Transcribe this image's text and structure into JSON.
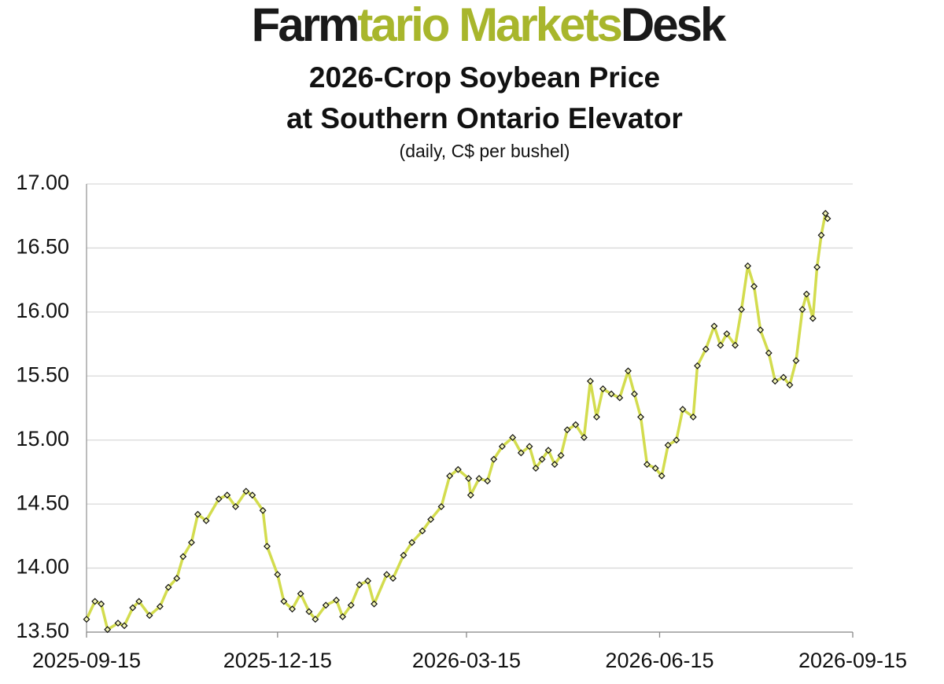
{
  "brand": [
    "Farm",
    "tario Markets",
    "Desk"
  ],
  "chart_data": {
    "type": "line",
    "title": [
      "2026-Crop Soybean Price",
      "at Southern Ontario Elevator"
    ],
    "subtitle": "(daily, C$ per bushel)",
    "x": [
      "2025-09-15",
      "2025-09-19",
      "2025-09-22",
      "2025-09-25",
      "2025-09-30",
      "2025-10-03",
      "2025-10-07",
      "2025-10-10",
      "2025-10-15",
      "2025-10-20",
      "2025-10-24",
      "2025-10-28",
      "2025-10-31",
      "2025-11-04",
      "2025-11-07",
      "2025-11-11",
      "2025-11-17",
      "2025-11-21",
      "2025-11-25",
      "2025-11-30",
      "2025-12-03",
      "2025-12-08",
      "2025-12-10",
      "2025-12-15",
      "2025-12-18",
      "2025-12-22",
      "2025-12-26",
      "2025-12-30",
      "2026-01-02",
      "2026-01-07",
      "2026-01-12",
      "2026-01-15",
      "2026-01-19",
      "2026-01-23",
      "2026-01-27",
      "2026-01-30",
      "2026-02-05",
      "2026-02-08",
      "2026-02-13",
      "2026-02-17",
      "2026-02-22",
      "2026-02-26",
      "2026-03-03",
      "2026-03-07",
      "2026-03-11",
      "2026-03-16",
      "2026-03-17",
      "2026-03-21",
      "2026-03-25",
      "2026-03-28",
      "2026-04-01",
      "2026-04-06",
      "2026-04-10",
      "2026-04-14",
      "2026-04-17",
      "2026-04-20",
      "2026-04-23",
      "2026-04-26",
      "2026-04-29",
      "2026-05-02",
      "2026-05-06",
      "2026-05-10",
      "2026-05-13",
      "2026-05-16",
      "2026-05-19",
      "2026-05-23",
      "2026-05-27",
      "2026-05-31",
      "2026-06-03",
      "2026-06-06",
      "2026-06-09",
      "2026-06-13",
      "2026-06-16",
      "2026-06-19",
      "2026-06-23",
      "2026-06-26",
      "2026-07-01",
      "2026-07-03",
      "2026-07-07",
      "2026-07-11",
      "2026-07-14",
      "2026-07-17",
      "2026-07-21",
      "2026-07-24",
      "2026-07-27",
      "2026-07-30",
      "2026-08-02",
      "2026-08-06",
      "2026-08-09",
      "2026-08-13",
      "2026-08-16",
      "2026-08-19",
      "2026-08-22",
      "2026-08-24",
      "2026-08-27",
      "2026-08-29",
      "2026-08-31",
      "2026-09-02",
      "2026-09-03"
    ],
    "series": [
      {
        "name": "Soybean price",
        "color": "#d3dc4e",
        "marker_fill": "#f3f5b8",
        "values": [
          13.6,
          13.74,
          13.72,
          13.52,
          13.57,
          13.55,
          13.69,
          13.74,
          13.63,
          13.7,
          13.85,
          13.92,
          14.09,
          14.2,
          14.42,
          14.37,
          14.54,
          14.57,
          14.48,
          14.6,
          14.57,
          14.45,
          14.17,
          13.95,
          13.74,
          13.68,
          13.8,
          13.66,
          13.6,
          13.71,
          13.75,
          13.62,
          13.71,
          13.87,
          13.9,
          13.72,
          13.95,
          13.92,
          14.1,
          14.2,
          14.29,
          14.38,
          14.48,
          14.72,
          14.77,
          14.7,
          14.57,
          14.7,
          14.68,
          14.85,
          14.95,
          15.02,
          14.9,
          14.95,
          14.78,
          14.85,
          14.92,
          14.81,
          14.88,
          15.08,
          15.12,
          15.02,
          15.46,
          15.18,
          15.4,
          15.36,
          15.33,
          15.54,
          15.36,
          15.18,
          14.81,
          14.78,
          14.72,
          14.96,
          15.0,
          15.24,
          15.18,
          15.58,
          15.71,
          15.89,
          15.74,
          15.83,
          15.74,
          16.02,
          16.36,
          16.2,
          15.86,
          15.68,
          15.46,
          15.49,
          15.43,
          15.62,
          16.02,
          16.14,
          15.95,
          16.35,
          16.6,
          16.77,
          16.73
        ]
      }
    ],
    "xlim": [
      "2025-09-15",
      "2026-09-15"
    ],
    "xticks": [
      "2025-09-15",
      "2025-12-15",
      "2026-03-15",
      "2026-06-15",
      "2026-09-15"
    ],
    "ylim": [
      13.5,
      17
    ],
    "yticks": [
      {
        "value": 13.5,
        "label": "13.50"
      },
      {
        "value": 14,
        "label": "14.00"
      },
      {
        "value": 14.5,
        "label": "14.50"
      },
      {
        "value": 15,
        "label": "15.00"
      },
      {
        "value": 15.5,
        "label": "15.50"
      },
      {
        "value": 16,
        "label": "16.00"
      },
      {
        "value": 16.5,
        "label": "16.50"
      },
      {
        "value": 17,
        "label": "17.00"
      }
    ],
    "grid": true
  }
}
